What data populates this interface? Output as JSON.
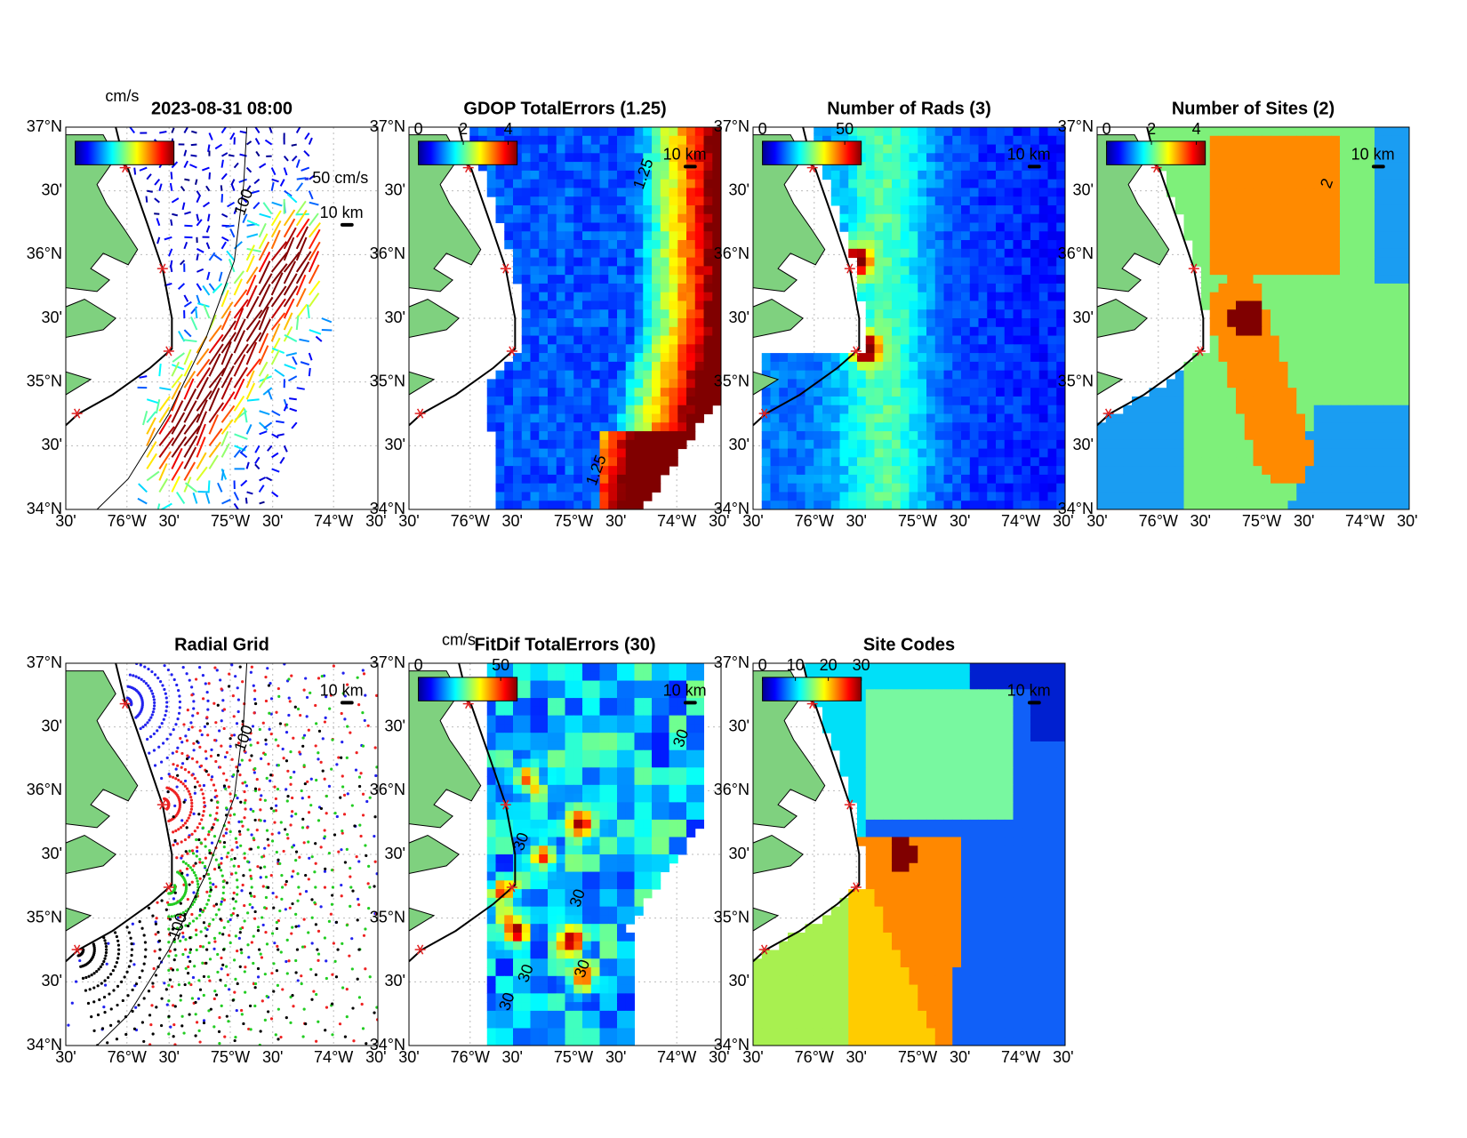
{
  "axes": {
    "lat_labels": [
      "37°N",
      "30'",
      "36°N",
      "30'",
      "35°N",
      "30'",
      "34°N"
    ],
    "lon_labels": [
      "30'",
      "76°W",
      "30'",
      "75°W",
      "30'",
      "74°W",
      "30'"
    ]
  },
  "panels": [
    {
      "type": "vectors",
      "title": "2023-08-31 08:00",
      "unit": "cm/s",
      "vector_scale": "50 cm/s",
      "scale_bar": "10 km",
      "contour_label": "100"
    },
    {
      "type": "field",
      "title": "GDOP TotalErrors (1.25)",
      "colorbar": {
        "ticks": [
          0,
          2,
          4
        ],
        "range": [
          0,
          4.4
        ]
      },
      "scale_bar": "10 km",
      "contour_label": "1.25"
    },
    {
      "type": "field",
      "title": "Number of Rads (3)",
      "colorbar": {
        "ticks": [
          0,
          50
        ],
        "range": [
          0,
          60
        ]
      },
      "scale_bar": "10 km"
    },
    {
      "type": "categorical",
      "title": "Number of Sites (2)",
      "colorbar": {
        "ticks": [
          0,
          2,
          4
        ],
        "range": [
          0,
          4.4
        ]
      },
      "scale_bar": "10 km",
      "contour_label": "2"
    },
    {
      "type": "radial_grid",
      "title": "Radial Grid",
      "scale_bar": "10 km",
      "contour_label": "100"
    },
    {
      "type": "field",
      "title": "FitDif TotalErrors (30)",
      "unit": "cm/s",
      "colorbar": {
        "ticks": [
          0,
          50
        ],
        "range": [
          0,
          60
        ]
      },
      "scale_bar": "10 km",
      "contour_label": "30"
    },
    {
      "type": "categorical",
      "title": "Site Codes",
      "colorbar": {
        "ticks": [
          0,
          10,
          20,
          30
        ],
        "range": [
          0,
          30
        ]
      },
      "scale_bar": "10 km"
    }
  ]
}
